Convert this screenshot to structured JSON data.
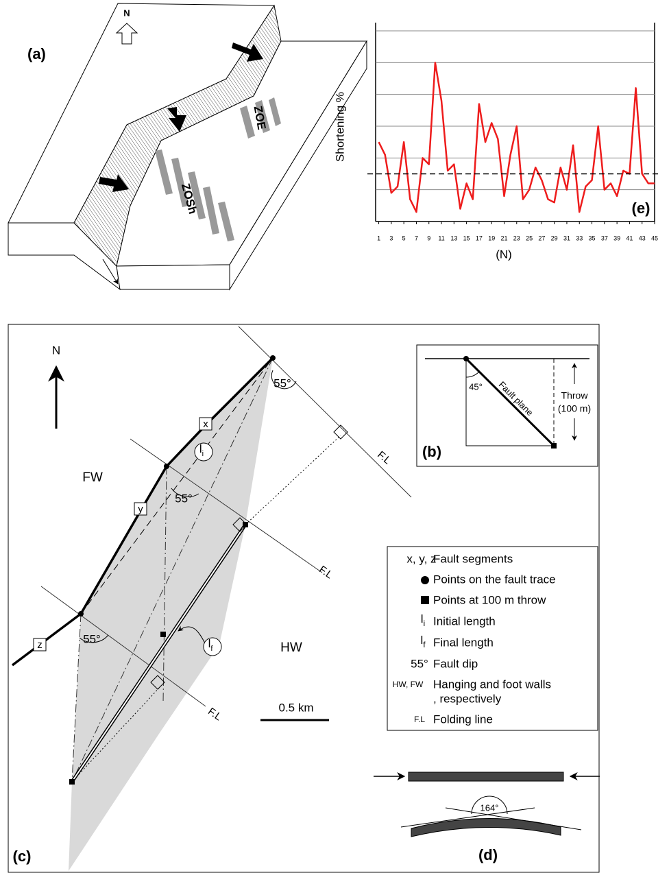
{
  "panel_a": {
    "label": "(a)",
    "north": "N",
    "zone_e": "ZOE",
    "zone_sh": "ZOSh"
  },
  "chart_data": {
    "type": "line",
    "panel_label": "(e)",
    "y_label": "Shortening %",
    "x_label": "(N)",
    "x": [
      1,
      2,
      3,
      4,
      5,
      6,
      7,
      8,
      9,
      10,
      11,
      12,
      13,
      14,
      15,
      16,
      17,
      18,
      19,
      20,
      21,
      22,
      23,
      24,
      25,
      26,
      27,
      28,
      29,
      30,
      31,
      32,
      33,
      34,
      35,
      36,
      37,
      38,
      39,
      40,
      41,
      42,
      43,
      44,
      45
    ],
    "values": [
      2.5,
      2.1,
      0.9,
      1.1,
      2.5,
      0.7,
      0.3,
      2.0,
      1.8,
      5.0,
      3.8,
      1.6,
      1.8,
      0.4,
      1.2,
      0.7,
      3.7,
      2.5,
      3.1,
      2.6,
      0.8,
      2.1,
      3.0,
      0.7,
      1.0,
      1.7,
      1.3,
      0.7,
      0.6,
      1.7,
      1.0,
      2.4,
      0.3,
      1.1,
      1.3,
      3.0,
      1.0,
      1.2,
      0.8,
      1.6,
      1.5,
      4.2,
      1.5,
      1.2,
      1.2
    ],
    "color": "#ee1c1c",
    "xlim": [
      0.5,
      45
    ],
    "ylim": [
      0,
      6
    ],
    "xticks": [
      1,
      3,
      5,
      7,
      9,
      11,
      13,
      15,
      17,
      19,
      21,
      23,
      25,
      27,
      29,
      31,
      33,
      35,
      37,
      39,
      41,
      43,
      45
    ],
    "ygrid": [
      0,
      1,
      2,
      3,
      4,
      5,
      6
    ],
    "reference_line": 1.5
  },
  "panel_c": {
    "label": "(c)",
    "north": "N",
    "footwall": "FW",
    "hangingwall": "HW",
    "segments": [
      "x",
      "y",
      "z"
    ],
    "initial_length": {
      "base": "l",
      "sub": "i"
    },
    "final_length": {
      "base": "l",
      "sub": "f"
    },
    "dip_labels": [
      "55°",
      "55°",
      "55°"
    ],
    "folding_lines": [
      "F.L",
      "F.L",
      "F.L"
    ],
    "scale": "0.5 km"
  },
  "panel_b": {
    "label": "(b)",
    "angle": "45°",
    "fault": "Fault plane",
    "throw": [
      "Throw",
      "(100 m)"
    ]
  },
  "legend": {
    "items": [
      {
        "symbol": "x, y, z",
        "text": "Fault segments"
      },
      {
        "text": "Points on the fault trace"
      },
      {
        "text": "Points at 100 m throw"
      },
      {
        "symbol": {
          "base": "l",
          "sub": "i"
        },
        "text": "Initial length"
      },
      {
        "symbol": {
          "base": "l",
          "sub": "f"
        },
        "text": "Final length"
      },
      {
        "symbol": "55°",
        "text": "Fault dip"
      },
      {
        "symbol": "HW, FW",
        "text": [
          "Hanging and foot walls",
          ", respectively"
        ]
      },
      {
        "symbol": "F.L",
        "text": "Folding line"
      }
    ]
  },
  "panel_d": {
    "label": "(d)",
    "angle": "164°"
  }
}
